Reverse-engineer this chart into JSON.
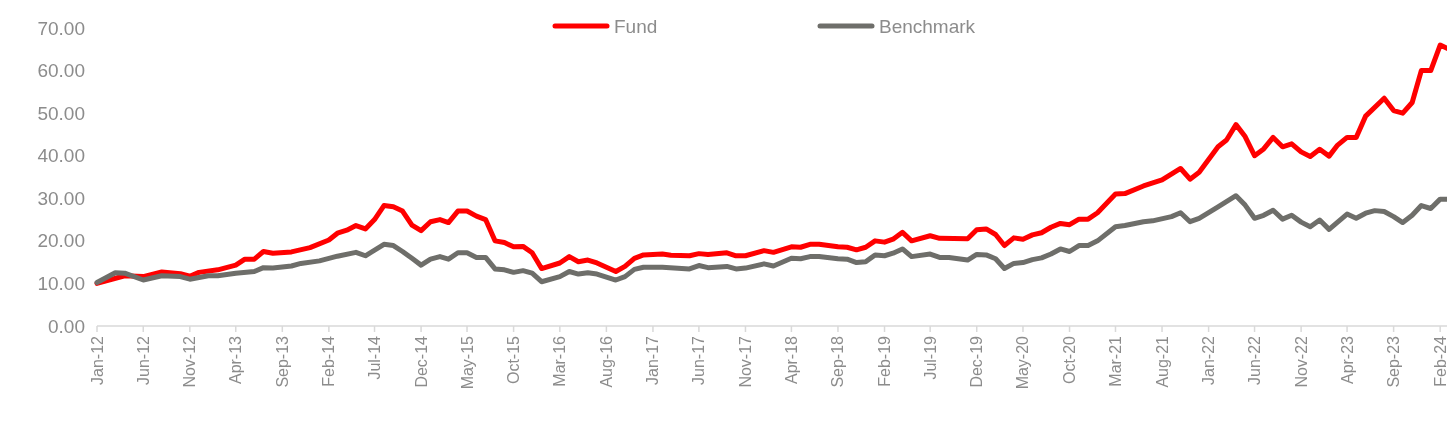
{
  "chart_data": {
    "type": "line",
    "legend": "top",
    "grid": false,
    "line_style": "solid",
    "marker": "none",
    "xlim": [
      "2012-01",
      "2024-03"
    ],
    "xticks": [
      {
        "value": "2012-01",
        "label": "Jan-12"
      },
      {
        "value": "2012-06",
        "label": "Jun-12"
      },
      {
        "value": "2012-11",
        "label": "Nov-12"
      },
      {
        "value": "2013-04",
        "label": "Apr-13"
      },
      {
        "value": "2013-09",
        "label": "Sep-13"
      },
      {
        "value": "2014-02",
        "label": "Feb-14"
      },
      {
        "value": "2014-07",
        "label": "Jul-14"
      },
      {
        "value": "2014-12",
        "label": "Dec-14"
      },
      {
        "value": "2015-05",
        "label": "May-15"
      },
      {
        "value": "2015-10",
        "label": "Oct-15"
      },
      {
        "value": "2016-03",
        "label": "Mar-16"
      },
      {
        "value": "2016-08",
        "label": "Aug-16"
      },
      {
        "value": "2017-01",
        "label": "Jan-17"
      },
      {
        "value": "2017-06",
        "label": "Jun-17"
      },
      {
        "value": "2017-11",
        "label": "Nov-17"
      },
      {
        "value": "2018-04",
        "label": "Apr-18"
      },
      {
        "value": "2018-09",
        "label": "Sep-18"
      },
      {
        "value": "2019-02",
        "label": "Feb-19"
      },
      {
        "value": "2019-07",
        "label": "Jul-19"
      },
      {
        "value": "2019-12",
        "label": "Dec-19"
      },
      {
        "value": "2020-05",
        "label": "May-20"
      },
      {
        "value": "2020-10",
        "label": "Oct-20"
      },
      {
        "value": "2021-03",
        "label": "Mar-21"
      },
      {
        "value": "2021-08",
        "label": "Aug-21"
      },
      {
        "value": "2022-01",
        "label": "Jan-22"
      },
      {
        "value": "2022-06",
        "label": "Jun-22"
      },
      {
        "value": "2022-11",
        "label": "Nov-22"
      },
      {
        "value": "2023-04",
        "label": "Apr-23"
      },
      {
        "value": "2023-09",
        "label": "Sep-23"
      },
      {
        "value": "2024-02",
        "label": "Feb-24"
      }
    ],
    "ylim": [
      0,
      70
    ],
    "yticks": [
      {
        "value": 0,
        "label": "0.00"
      },
      {
        "value": 10,
        "label": "10.00"
      },
      {
        "value": 20,
        "label": "20.00"
      },
      {
        "value": 30,
        "label": "30.00"
      },
      {
        "value": 40,
        "label": "40.00"
      },
      {
        "value": 50,
        "label": "50.00"
      },
      {
        "value": 60,
        "label": "60.00"
      },
      {
        "value": 70,
        "label": "70.00"
      }
    ],
    "series": [
      {
        "name": "Fund",
        "color": "#ff0000",
        "x": [
          "2012-01",
          "2012-04",
          "2012-06",
          "2012-08",
          "2012-10",
          "2012-11",
          "2012-12",
          "2013-02",
          "2013-04",
          "2013-05",
          "2013-06",
          "2013-07",
          "2013-08",
          "2013-10",
          "2013-12",
          "2014-02",
          "2014-03",
          "2014-04",
          "2014-05",
          "2014-06",
          "2014-07",
          "2014-08",
          "2014-09",
          "2014-10",
          "2014-11",
          "2014-12",
          "2015-01",
          "2015-02",
          "2015-03",
          "2015-04",
          "2015-05",
          "2015-06",
          "2015-07",
          "2015-08",
          "2015-09",
          "2015-10",
          "2015-11",
          "2015-12",
          "2016-01",
          "2016-03",
          "2016-04",
          "2016-05",
          "2016-06",
          "2016-07",
          "2016-09",
          "2016-10",
          "2016-11",
          "2016-12",
          "2017-02",
          "2017-03",
          "2017-05",
          "2017-06",
          "2017-07",
          "2017-09",
          "2017-10",
          "2017-11",
          "2018-01",
          "2018-02",
          "2018-04",
          "2018-05",
          "2018-06",
          "2018-07",
          "2018-09",
          "2018-10",
          "2018-11",
          "2018-12",
          "2019-01",
          "2019-02",
          "2019-03",
          "2019-04",
          "2019-05",
          "2019-07",
          "2019-08",
          "2019-11",
          "2019-12",
          "2020-01",
          "2020-02",
          "2020-03",
          "2020-04",
          "2020-05",
          "2020-06",
          "2020-07",
          "2020-08",
          "2020-09",
          "2020-10",
          "2020-11",
          "2020-12",
          "2021-01",
          "2021-03",
          "2021-04",
          "2021-06",
          "2021-08",
          "2021-10",
          "2021-11",
          "2021-12",
          "2022-02",
          "2022-03",
          "2022-04",
          "2022-05",
          "2022-06",
          "2022-07",
          "2022-08",
          "2022-09",
          "2022-10",
          "2022-11",
          "2022-12",
          "2023-01",
          "2023-02",
          "2023-03",
          "2023-04",
          "2023-05",
          "2023-06",
          "2023-08",
          "2023-09",
          "2023-10",
          "2023-11",
          "2023-12",
          "2024-01",
          "2024-02",
          "2024-03"
        ],
        "values": [
          10.0,
          11.8,
          11.6,
          12.7,
          12.3,
          11.7,
          12.6,
          13.2,
          14.3,
          15.7,
          15.7,
          17.5,
          17.1,
          17.4,
          18.4,
          20.2,
          21.8,
          22.5,
          23.6,
          22.8,
          25.0,
          28.3,
          28.0,
          27.0,
          23.7,
          22.4,
          24.5,
          25.0,
          24.3,
          27.0,
          27.0,
          25.8,
          25.0,
          20.0,
          19.6,
          18.6,
          18.7,
          17.2,
          13.5,
          14.8,
          16.3,
          15.1,
          15.5,
          14.8,
          12.8,
          14.0,
          15.9,
          16.7,
          16.9,
          16.6,
          16.5,
          17.0,
          16.8,
          17.2,
          16.5,
          16.5,
          17.7,
          17.3,
          18.6,
          18.5,
          19.2,
          19.2,
          18.6,
          18.5,
          17.9,
          18.5,
          20.0,
          19.7,
          20.4,
          22.0,
          20.0,
          21.2,
          20.6,
          20.5,
          22.6,
          22.8,
          21.5,
          18.9,
          20.7,
          20.4,
          21.4,
          21.9,
          23.2,
          24.1,
          23.8,
          25.1,
          25.1,
          26.6,
          31.0,
          31.1,
          32.9,
          34.3,
          37.0,
          34.5,
          36.1,
          42.1,
          43.7,
          47.3,
          44.5,
          40.0,
          41.6,
          44.3,
          42.1,
          42.8,
          40.9,
          39.8,
          41.5,
          39.9,
          42.5,
          44.3,
          44.3,
          49.3,
          53.5,
          50.6,
          50.0,
          52.5,
          60.0,
          60.0,
          66.0,
          65.0
        ]
      },
      {
        "name": "Benchmark",
        "color": "#6e6e6a",
        "x": [
          "2012-01",
          "2012-03",
          "2012-04",
          "2012-06",
          "2012-08",
          "2012-10",
          "2012-11",
          "2013-01",
          "2013-02",
          "2013-04",
          "2013-06",
          "2013-07",
          "2013-08",
          "2013-10",
          "2013-11",
          "2014-01",
          "2014-03",
          "2014-05",
          "2014-06",
          "2014-08",
          "2014-09",
          "2014-10",
          "2014-11",
          "2014-12",
          "2015-01",
          "2015-02",
          "2015-03",
          "2015-04",
          "2015-05",
          "2015-06",
          "2015-07",
          "2015-08",
          "2015-09",
          "2015-10",
          "2015-11",
          "2015-12",
          "2016-01",
          "2016-03",
          "2016-04",
          "2016-05",
          "2016-06",
          "2016-07",
          "2016-09",
          "2016-10",
          "2016-11",
          "2016-12",
          "2017-02",
          "2017-05",
          "2017-06",
          "2017-07",
          "2017-09",
          "2017-10",
          "2017-11",
          "2018-01",
          "2018-02",
          "2018-04",
          "2018-05",
          "2018-06",
          "2018-07",
          "2018-09",
          "2018-10",
          "2018-11",
          "2018-12",
          "2019-01",
          "2019-02",
          "2019-03",
          "2019-04",
          "2019-05",
          "2019-07",
          "2019-08",
          "2019-09",
          "2019-11",
          "2019-12",
          "2020-01",
          "2020-02",
          "2020-03",
          "2020-04",
          "2020-05",
          "2020-06",
          "2020-07",
          "2020-08",
          "2020-09",
          "2020-10",
          "2020-11",
          "2020-12",
          "2021-01",
          "2021-03",
          "2021-04",
          "2021-06",
          "2021-07",
          "2021-09",
          "2021-10",
          "2021-11",
          "2021-12",
          "2022-02",
          "2022-04",
          "2022-05",
          "2022-06",
          "2022-07",
          "2022-08",
          "2022-09",
          "2022-10",
          "2022-11",
          "2022-12",
          "2023-01",
          "2023-02",
          "2023-03",
          "2023-04",
          "2023-05",
          "2023-06",
          "2023-07",
          "2023-08",
          "2023-09",
          "2023-10",
          "2023-11",
          "2023-12",
          "2024-01",
          "2024-02",
          "2024-03"
        ],
        "values": [
          10.2,
          12.5,
          12.4,
          10.8,
          11.8,
          11.6,
          11.0,
          11.8,
          11.8,
          12.4,
          12.8,
          13.7,
          13.6,
          14.1,
          14.7,
          15.3,
          16.4,
          17.3,
          16.5,
          19.2,
          18.9,
          17.5,
          15.9,
          14.3,
          15.7,
          16.3,
          15.7,
          17.2,
          17.2,
          16.1,
          16.1,
          13.4,
          13.2,
          12.6,
          13.0,
          12.4,
          10.4,
          11.6,
          12.8,
          12.2,
          12.5,
          12.2,
          10.8,
          11.6,
          13.3,
          13.8,
          13.8,
          13.4,
          14.2,
          13.7,
          14.0,
          13.4,
          13.6,
          14.6,
          14.1,
          15.9,
          15.8,
          16.3,
          16.3,
          15.8,
          15.7,
          14.9,
          15.1,
          16.7,
          16.5,
          17.1,
          18.1,
          16.3,
          16.9,
          16.1,
          16.1,
          15.5,
          16.8,
          16.7,
          15.8,
          13.5,
          14.7,
          14.9,
          15.6,
          16.0,
          16.9,
          18.1,
          17.5,
          18.9,
          18.9,
          20.0,
          23.3,
          23.6,
          24.5,
          24.7,
          25.7,
          26.6,
          24.5,
          25.3,
          28.0,
          30.6,
          28.4,
          25.3,
          26.0,
          27.2,
          25.1,
          26.0,
          24.4,
          23.3,
          24.9,
          22.7,
          24.4,
          26.3,
          25.3,
          26.5,
          27.1,
          26.9,
          25.7,
          24.3,
          26.0,
          28.3,
          27.6,
          29.8,
          29.8
        ]
      }
    ]
  }
}
